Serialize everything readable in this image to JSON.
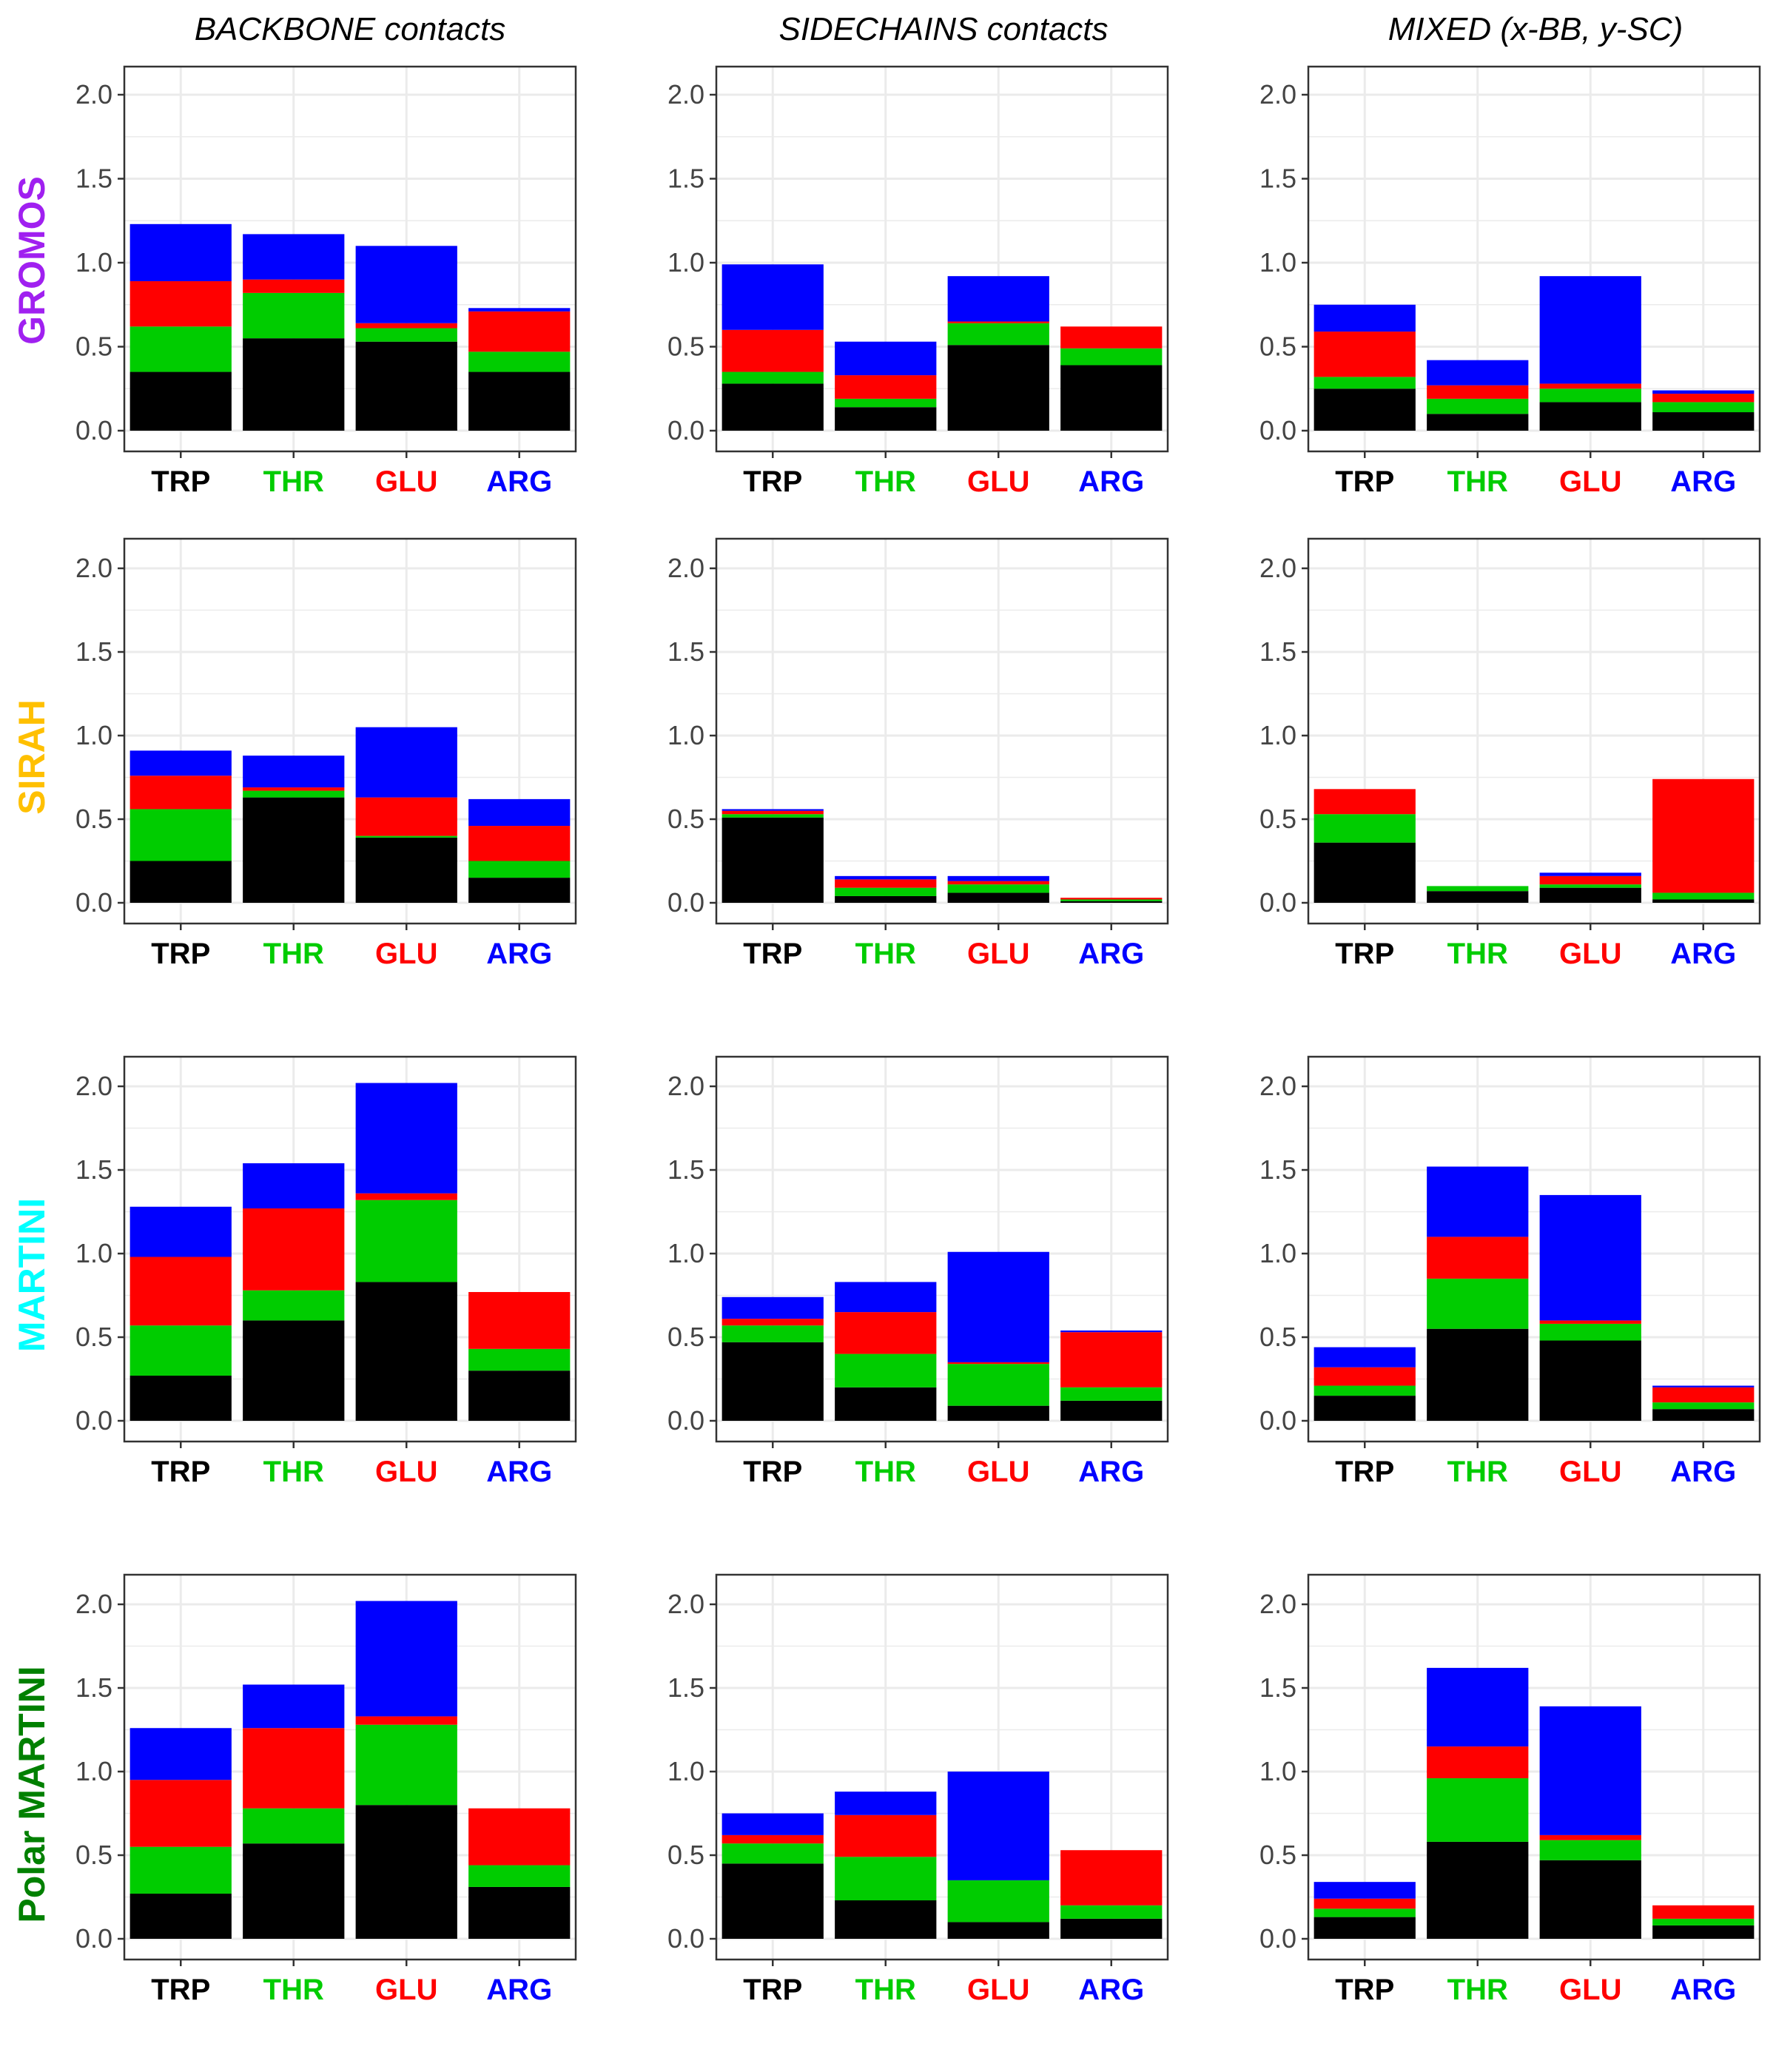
{
  "colors": {
    "stack": [
      "#000000",
      "#00cc00",
      "#ff0000",
      "#0000ff"
    ],
    "category": {
      "TRP": "#000000",
      "THR": "#00cc00",
      "GLU": "#ff0000",
      "ARG": "#0000ff"
    },
    "rows": {
      "GROMOS": "#a020f0",
      "SIRAH": "#ffc000",
      "MARTINI": "#00ffff",
      "Polar MARTINI": "#008000"
    },
    "grid": "#ebebeb",
    "panel_border": "#333333"
  },
  "columns": [
    "BACKBONE contacts",
    "SIDECHAINS contacts",
    "MIXED (x-BB, y-SC)"
  ],
  "rows": [
    "GROMOS",
    "SIRAH",
    "MARTINI",
    "Polar MARTINI"
  ],
  "chart_data": {
    "type": "bar",
    "stacked": true,
    "categories": [
      "TRP",
      "THR",
      "GLU",
      "ARG"
    ],
    "ylim": [
      0,
      2.2
    ],
    "yticks": [
      0.0,
      0.5,
      1.0,
      1.5,
      2.0
    ],
    "ytick_labels": [
      "0.0",
      "0.5",
      "1.0",
      "1.5",
      "2.0"
    ],
    "grid": true,
    "legend": "none",
    "panels": [
      {
        "row": "GROMOS",
        "column": "BACKBONE contacts",
        "bars": [
          [
            0.35,
            0.27,
            0.27,
            0.34
          ],
          [
            0.55,
            0.27,
            0.08,
            0.27
          ],
          [
            0.53,
            0.08,
            0.03,
            0.46
          ],
          [
            0.35,
            0.12,
            0.24,
            0.02
          ]
        ]
      },
      {
        "row": "GROMOS",
        "column": "SIDECHAINS contacts",
        "bars": [
          [
            0.28,
            0.07,
            0.25,
            0.39
          ],
          [
            0.14,
            0.05,
            0.14,
            0.2
          ],
          [
            0.51,
            0.13,
            0.01,
            0.27
          ],
          [
            0.39,
            0.1,
            0.13,
            0.0
          ]
        ]
      },
      {
        "row": "GROMOS",
        "column": "MIXED (x-BB, y-SC)",
        "bars": [
          [
            0.25,
            0.07,
            0.27,
            0.16
          ],
          [
            0.1,
            0.09,
            0.08,
            0.15
          ],
          [
            0.17,
            0.08,
            0.03,
            0.64
          ],
          [
            0.11,
            0.06,
            0.05,
            0.02
          ]
        ]
      },
      {
        "row": "SIRAH",
        "column": "BACKBONE contacts",
        "bars": [
          [
            0.25,
            0.31,
            0.2,
            0.15
          ],
          [
            0.63,
            0.04,
            0.02,
            0.19
          ],
          [
            0.39,
            0.01,
            0.23,
            0.42
          ],
          [
            0.15,
            0.1,
            0.21,
            0.16
          ]
        ]
      },
      {
        "row": "SIRAH",
        "column": "SIDECHAINS contacts",
        "bars": [
          [
            0.51,
            0.02,
            0.02,
            0.01
          ],
          [
            0.04,
            0.05,
            0.05,
            0.02
          ],
          [
            0.06,
            0.05,
            0.02,
            0.03
          ],
          [
            0.01,
            0.01,
            0.01,
            0.0
          ]
        ]
      },
      {
        "row": "SIRAH",
        "column": "MIXED (x-BB, y-SC)",
        "bars": [
          [
            0.36,
            0.17,
            0.15,
            0.0
          ],
          [
            0.07,
            0.03,
            0.0,
            0.0
          ],
          [
            0.09,
            0.02,
            0.05,
            0.02
          ],
          [
            0.02,
            0.04,
            0.68,
            0.0
          ]
        ]
      },
      {
        "row": "MARTINI",
        "column": "BACKBONE contacts",
        "bars": [
          [
            0.27,
            0.3,
            0.41,
            0.3
          ],
          [
            0.6,
            0.18,
            0.49,
            0.27
          ],
          [
            0.83,
            0.49,
            0.04,
            0.66
          ],
          [
            0.3,
            0.13,
            0.34,
            0.0
          ]
        ]
      },
      {
        "row": "MARTINI",
        "column": "SIDECHAINS contacts",
        "bars": [
          [
            0.47,
            0.1,
            0.04,
            0.13
          ],
          [
            0.2,
            0.2,
            0.25,
            0.18
          ],
          [
            0.09,
            0.25,
            0.01,
            0.66
          ],
          [
            0.12,
            0.08,
            0.33,
            0.01
          ]
        ]
      },
      {
        "row": "MARTINI",
        "column": "MIXED (x-BB, y-SC)",
        "bars": [
          [
            0.15,
            0.06,
            0.11,
            0.12
          ],
          [
            0.55,
            0.3,
            0.25,
            0.42
          ],
          [
            0.48,
            0.1,
            0.02,
            0.75
          ],
          [
            0.07,
            0.04,
            0.09,
            0.01
          ]
        ]
      },
      {
        "row": "Polar MARTINI",
        "column": "BACKBONE contacts",
        "bars": [
          [
            0.27,
            0.28,
            0.4,
            0.31
          ],
          [
            0.57,
            0.21,
            0.48,
            0.26
          ],
          [
            0.8,
            0.48,
            0.05,
            0.69
          ],
          [
            0.31,
            0.13,
            0.34,
            0.0
          ]
        ]
      },
      {
        "row": "Polar MARTINI",
        "column": "SIDECHAINS contacts",
        "bars": [
          [
            0.45,
            0.12,
            0.05,
            0.13
          ],
          [
            0.23,
            0.26,
            0.25,
            0.14
          ],
          [
            0.1,
            0.25,
            0.0,
            0.65
          ],
          [
            0.12,
            0.08,
            0.33,
            0.0
          ]
        ]
      },
      {
        "row": "Polar MARTINI",
        "column": "MIXED (x-BB, y-SC)",
        "bars": [
          [
            0.13,
            0.05,
            0.06,
            0.1
          ],
          [
            0.58,
            0.38,
            0.19,
            0.47
          ],
          [
            0.47,
            0.12,
            0.03,
            0.77
          ],
          [
            0.08,
            0.04,
            0.08,
            0.0
          ]
        ]
      }
    ]
  }
}
